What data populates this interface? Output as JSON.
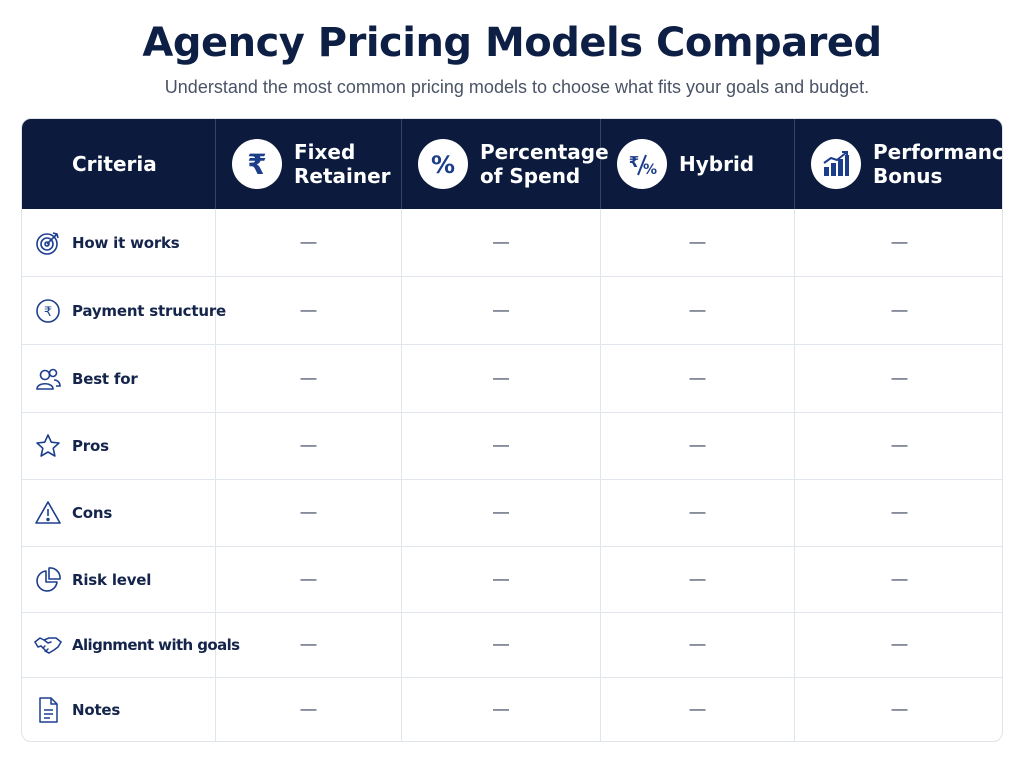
{
  "title": "Agency Pricing Models Compared",
  "subtitle": "Understand the most common pricing models to choose what fits your goals and budget.",
  "table": {
    "criteria_header": "Criteria",
    "columns": [
      {
        "label": "Fixed\nRetainer",
        "icon": "rupee-icon"
      },
      {
        "label": "Percentage\nof Spend",
        "icon": "percent-icon"
      },
      {
        "label": "Hybrid",
        "icon": "rupee-percent-icon"
      },
      {
        "label": "Performance\nBonus",
        "icon": "bar-chart-growth-icon"
      }
    ],
    "rows": [
      {
        "label": "How it works",
        "icon": "target-icon",
        "values": [
          "—",
          "—",
          "—",
          "—"
        ]
      },
      {
        "label": "Payment structure",
        "icon": "rupee-coin-icon",
        "values": [
          "—",
          "—",
          "—",
          "—"
        ]
      },
      {
        "label": "Best for",
        "icon": "users-icon",
        "values": [
          "—",
          "—",
          "—",
          "—"
        ]
      },
      {
        "label": "Pros",
        "icon": "star-icon",
        "values": [
          "—",
          "—",
          "—",
          "—"
        ]
      },
      {
        "label": "Cons",
        "icon": "warning-icon",
        "values": [
          "—",
          "—",
          "—",
          "—"
        ]
      },
      {
        "label": "Risk level",
        "icon": "pie-chart-icon",
        "values": [
          "—",
          "—",
          "—",
          "—"
        ]
      },
      {
        "label": "Alignment with goals",
        "icon": "handshake-icon",
        "values": [
          "—",
          "—",
          "—",
          "—"
        ]
      },
      {
        "label": "Notes",
        "icon": "document-icon",
        "values": [
          "—",
          "—",
          "—",
          "—"
        ]
      }
    ]
  }
}
